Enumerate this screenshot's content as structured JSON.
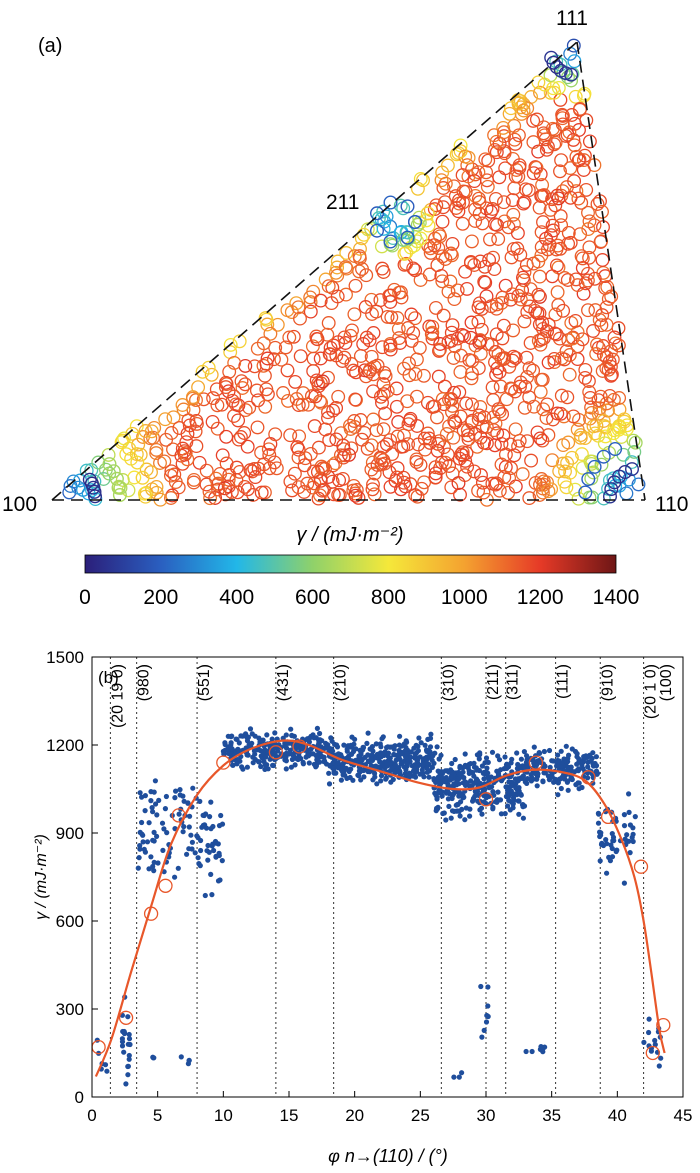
{
  "chart_data": [
    {
      "panel": "(a)",
      "type": "scatter",
      "corner_labels": [
        "100",
        "110",
        "111",
        "211"
      ],
      "colorbar": {
        "label": "γ / (mJ·m⁻²)",
        "ticks": [
          0,
          200,
          400,
          600,
          800,
          1000,
          1200,
          1400
        ],
        "range": [
          0,
          1400
        ],
        "colormap": [
          "#2b1f7a",
          "#2a5fc0",
          "#22b7e8",
          "#8fd16a",
          "#f5e83a",
          "#f4a230",
          "#e63a27",
          "#6e1616"
        ]
      },
      "marker": "open-circle"
    },
    {
      "panel": "(b)",
      "type": "scatter",
      "xlabel": "φ n→(110) / (°)",
      "ylabel": "γ / (mJ·m⁻²)",
      "xlim": [
        0,
        45
      ],
      "ylim": [
        0,
        1500
      ],
      "xticks": [
        0,
        5,
        10,
        15,
        20,
        25,
        30,
        35,
        40,
        45
      ],
      "yticks": [
        0,
        300,
        600,
        900,
        1200,
        1500
      ],
      "point_color": "#1f4e9c",
      "fit_color": "#e8572a",
      "reference_lines": [
        {
          "x": 1.4,
          "label": "(20 19 0)"
        },
        {
          "x": 3.4,
          "label": "(980)"
        },
        {
          "x": 8.0,
          "label": "(551)"
        },
        {
          "x": 14.0,
          "label": "(431)"
        },
        {
          "x": 18.4,
          "label": "(210)"
        },
        {
          "x": 26.6,
          "label": "(310)"
        },
        {
          "x": 30.0,
          "label": "(211)"
        },
        {
          "x": 31.5,
          "label": "(311)"
        },
        {
          "x": 35.3,
          "label": "(111)"
        },
        {
          "x": 38.7,
          "label": "(910)"
        },
        {
          "x": 42.0,
          "label": "(20 1 0)"
        },
        {
          "x": 45.0,
          "label": "(100)"
        }
      ],
      "open_circles": [
        {
          "x": 0.5,
          "y": 170
        },
        {
          "x": 2.6,
          "y": 270
        },
        {
          "x": 4.5,
          "y": 625
        },
        {
          "x": 5.6,
          "y": 720
        },
        {
          "x": 6.6,
          "y": 960
        },
        {
          "x": 10.0,
          "y": 1140
        },
        {
          "x": 14.0,
          "y": 1175
        },
        {
          "x": 15.8,
          "y": 1195
        },
        {
          "x": 30.0,
          "y": 1015
        },
        {
          "x": 33.8,
          "y": 1140
        },
        {
          "x": 37.8,
          "y": 1090
        },
        {
          "x": 39.3,
          "y": 955
        },
        {
          "x": 41.8,
          "y": 785
        },
        {
          "x": 42.7,
          "y": 150
        },
        {
          "x": 43.5,
          "y": 245
        }
      ],
      "fit_curve": [
        {
          "x": 0.3,
          "y": 70
        },
        {
          "x": 1.5,
          "y": 200
        },
        {
          "x": 3.0,
          "y": 430
        },
        {
          "x": 4.5,
          "y": 650
        },
        {
          "x": 6.0,
          "y": 860
        },
        {
          "x": 8.0,
          "y": 1030
        },
        {
          "x": 10.0,
          "y": 1130
        },
        {
          "x": 12.0,
          "y": 1185
        },
        {
          "x": 14.5,
          "y": 1215
        },
        {
          "x": 16.5,
          "y": 1200
        },
        {
          "x": 19.0,
          "y": 1150
        },
        {
          "x": 22.0,
          "y": 1110
        },
        {
          "x": 25.0,
          "y": 1070
        },
        {
          "x": 27.5,
          "y": 1050
        },
        {
          "x": 29.5,
          "y": 1055
        },
        {
          "x": 31.5,
          "y": 1095
        },
        {
          "x": 33.5,
          "y": 1115
        },
        {
          "x": 35.5,
          "y": 1110
        },
        {
          "x": 37.5,
          "y": 1080
        },
        {
          "x": 39.0,
          "y": 1000
        },
        {
          "x": 40.3,
          "y": 880
        },
        {
          "x": 41.3,
          "y": 750
        },
        {
          "x": 42.0,
          "y": 600
        },
        {
          "x": 42.6,
          "y": 420
        },
        {
          "x": 43.2,
          "y": 230
        },
        {
          "x": 43.6,
          "y": 150
        }
      ],
      "scatter_bands": [
        {
          "x0": 0.3,
          "x1": 1.2,
          "center": 120,
          "spread": 120,
          "n": 6
        },
        {
          "x0": 2.3,
          "x1": 2.9,
          "center": 180,
          "spread": 180,
          "n": 22
        },
        {
          "x0": 4.6,
          "x1": 5.0,
          "center": 130,
          "spread": 20,
          "n": 3
        },
        {
          "x0": 6.5,
          "x1": 7.5,
          "center": 125,
          "spread": 25,
          "n": 4
        },
        {
          "x0": 3.5,
          "x1": 10.0,
          "center": 900,
          "spread": 260,
          "n": 120
        },
        {
          "x0": 10.0,
          "x1": 18.0,
          "center": 1185,
          "spread": 90,
          "n": 260
        },
        {
          "x0": 18.0,
          "x1": 26.0,
          "center": 1150,
          "spread": 110,
          "n": 330
        },
        {
          "x0": 26.0,
          "x1": 33.0,
          "center": 1060,
          "spread": 150,
          "n": 330
        },
        {
          "x0": 33.0,
          "x1": 38.5,
          "center": 1120,
          "spread": 100,
          "n": 160
        },
        {
          "x0": 38.5,
          "x1": 41.5,
          "center": 900,
          "spread": 200,
          "n": 50
        },
        {
          "x0": 27.5,
          "x1": 28.3,
          "center": 70,
          "spread": 15,
          "n": 3
        },
        {
          "x0": 29.6,
          "x1": 30.2,
          "center": 300,
          "spread": 150,
          "n": 8
        },
        {
          "x0": 33.0,
          "x1": 34.5,
          "center": 165,
          "spread": 20,
          "n": 8
        },
        {
          "x0": 42.0,
          "x1": 43.3,
          "center": 170,
          "spread": 110,
          "n": 14
        }
      ]
    }
  ]
}
